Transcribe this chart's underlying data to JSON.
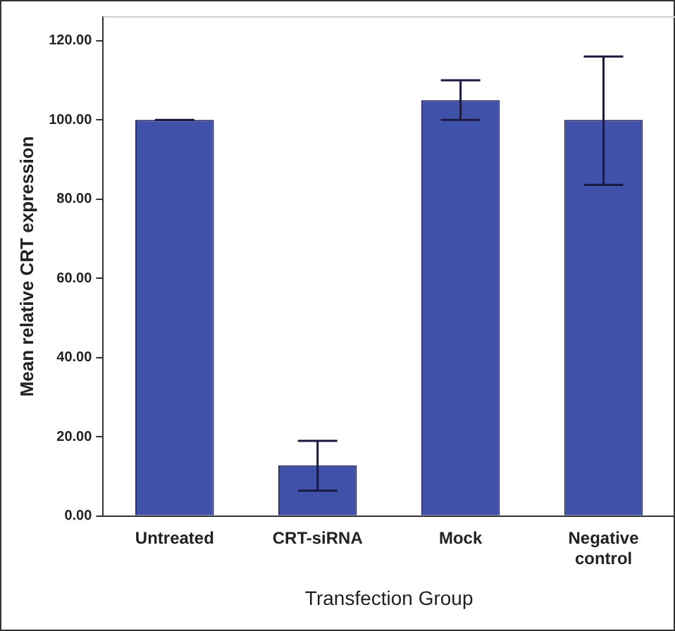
{
  "chart_data": {
    "type": "bar",
    "xlabel": "Transfection Group",
    "ylabel": "Mean relative CRT expression",
    "categories": [
      "Untreated",
      "CRT-siRNA",
      "Mock",
      "Negative control"
    ],
    "values": [
      100,
      12.8,
      105,
      100
    ],
    "color": "#3f51a8",
    "errors": [
      0,
      [
        6.4,
        19
      ],
      [
        100,
        110
      ],
      [
        83.6,
        116
      ]
    ],
    "ylim": [
      0,
      126
    ],
    "yticks": [
      {
        "value": 0,
        "label": "0.00"
      },
      {
        "value": 20,
        "label": "20.00"
      },
      {
        "value": 40,
        "label": "40.00"
      },
      {
        "value": 60,
        "label": "60.00"
      },
      {
        "value": 80,
        "label": "80.00"
      },
      {
        "value": 100,
        "label": "100.00"
      },
      {
        "value": 120,
        "label": "120.00"
      }
    ],
    "grid": false,
    "legend": false
  }
}
